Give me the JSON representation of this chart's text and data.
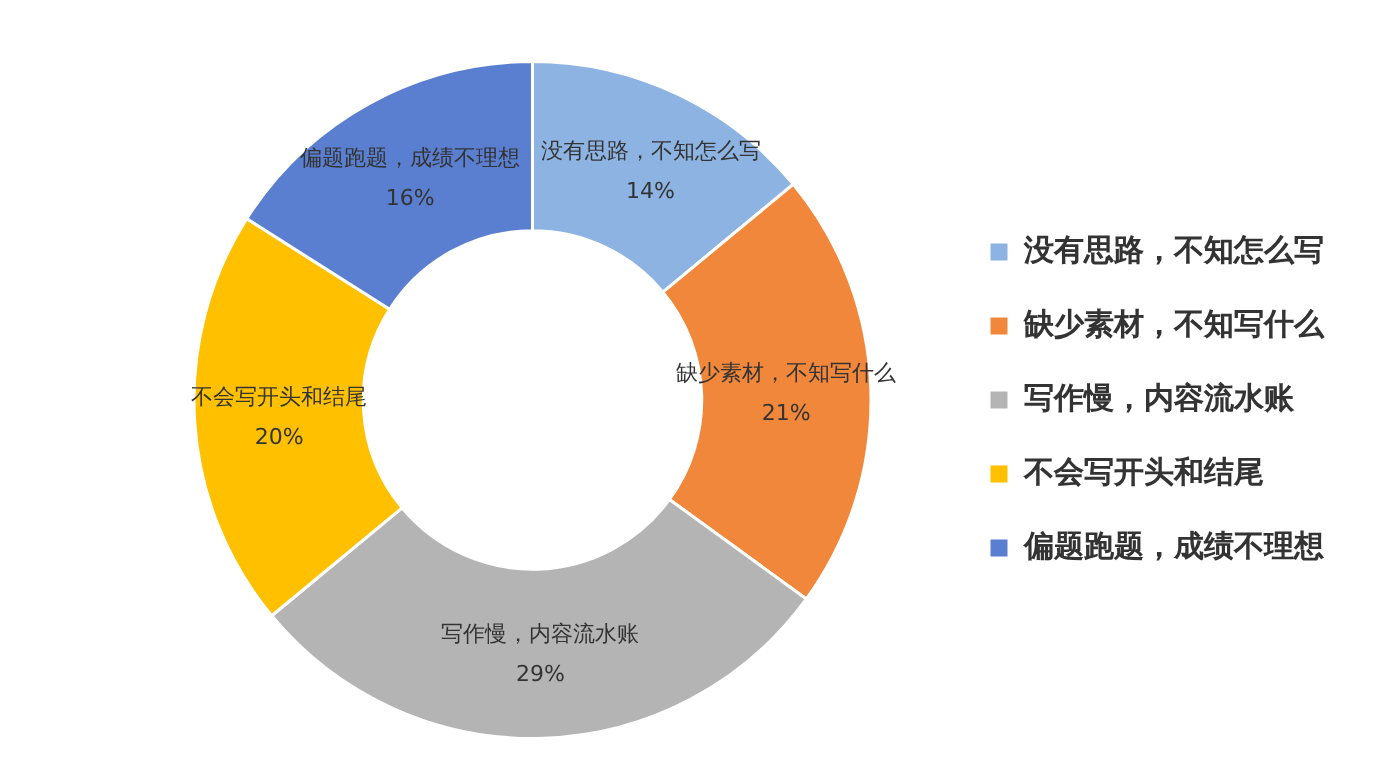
{
  "chart_data": {
    "type": "donut",
    "categories": [
      "没有思路，不知怎么写",
      "缺少素材，不知写什么",
      "写作慢，内容流水账",
      "不会写开头和结尾",
      "偏题跑题，成绩不理想"
    ],
    "values": [
      14,
      21,
      29,
      20,
      16
    ],
    "colors": [
      "#8db3e2",
      "#f0873a",
      "#b4b4b4",
      "#ffc000",
      "#5b7fd0"
    ],
    "value_labels": [
      "14%",
      "21%",
      "29%",
      "20%",
      "16%"
    ],
    "legend": "right"
  }
}
